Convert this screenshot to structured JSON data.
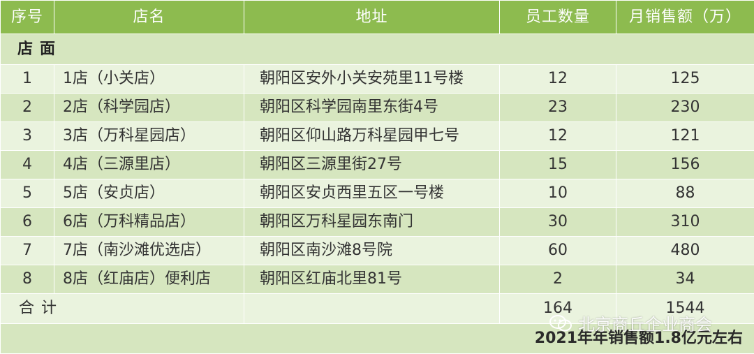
{
  "table": {
    "headers": {
      "no": "序号",
      "name": "店名",
      "address": "地址",
      "staff": "员工数量",
      "sales": "月销售额（万）"
    },
    "section_label": "店面",
    "rows": [
      {
        "no": "1",
        "name": "1店（小关店）",
        "address": "朝阳区安外小关安苑里11号楼",
        "staff": "12",
        "sales": "125"
      },
      {
        "no": "2",
        "name": "2店（科学园店）",
        "address": "朝阳区科学园南里东街4号",
        "staff": "23",
        "sales": "230"
      },
      {
        "no": "3",
        "name": "3店（万科星园店）",
        "address": "朝阳区仰山路万科星园甲七号",
        "staff": "12",
        "sales": "121"
      },
      {
        "no": "4",
        "name": "4店（三源里店）",
        "address": "朝阳区三源里街27号",
        "staff": "15",
        "sales": "156"
      },
      {
        "no": "5",
        "name": "5店（安贞店）",
        "address": "朝阳区安贞西里五区一号楼",
        "staff": "10",
        "sales": "88"
      },
      {
        "no": "6",
        "name": "6店（万科精品店）",
        "address": "朝阳区万科星园东南门",
        "staff": "30",
        "sales": "310"
      },
      {
        "no": "7",
        "name": "7店（南沙滩优选店）",
        "address": "朝阳区南沙滩8号院",
        "staff": "60",
        "sales": "480"
      },
      {
        "no": "8",
        "name": "8店（红庙店）便利店",
        "address": "朝阳区红庙北里81号",
        "staff": "2",
        "sales": "34"
      }
    ],
    "total": {
      "label": "合计",
      "staff": "164",
      "sales": "1544"
    },
    "footer_note": "2021年年销售额1.8亿元左右"
  },
  "watermark": {
    "text": "北京商丘企业商会",
    "icon": "wechat-icon"
  },
  "colors": {
    "header_bg": "#8dbb4f",
    "row_light": "#eaf3de",
    "row_dark": "#d6e6bf"
  }
}
